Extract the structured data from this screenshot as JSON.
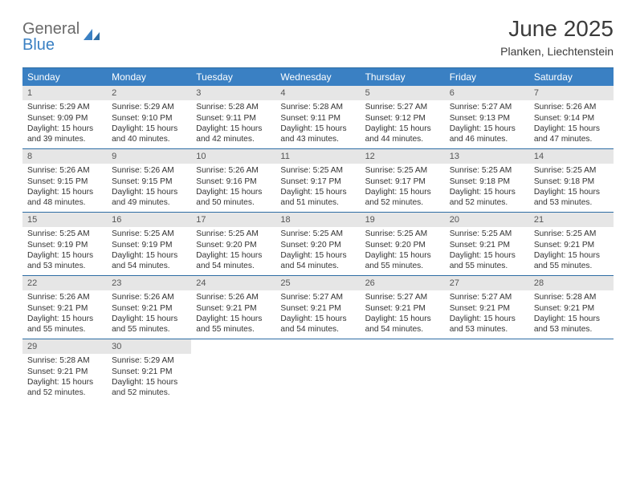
{
  "logo": {
    "word1": "General",
    "word2": "Blue"
  },
  "title": "June 2025",
  "location": "Planken, Liechtenstein",
  "colors": {
    "header_bg": "#3a80c3",
    "header_text": "#ffffff",
    "daynum_bg": "#e6e6e6",
    "border": "#2e6da4",
    "body_text": "#333333",
    "logo_gray": "#6a6a6a",
    "logo_blue": "#3a80c3"
  },
  "weekdays": [
    "Sunday",
    "Monday",
    "Tuesday",
    "Wednesday",
    "Thursday",
    "Friday",
    "Saturday"
  ],
  "weeks": [
    [
      {
        "n": "1",
        "sr": "5:29 AM",
        "ss": "9:09 PM",
        "dl": "15 hours and 39 minutes."
      },
      {
        "n": "2",
        "sr": "5:29 AM",
        "ss": "9:10 PM",
        "dl": "15 hours and 40 minutes."
      },
      {
        "n": "3",
        "sr": "5:28 AM",
        "ss": "9:11 PM",
        "dl": "15 hours and 42 minutes."
      },
      {
        "n": "4",
        "sr": "5:28 AM",
        "ss": "9:11 PM",
        "dl": "15 hours and 43 minutes."
      },
      {
        "n": "5",
        "sr": "5:27 AM",
        "ss": "9:12 PM",
        "dl": "15 hours and 44 minutes."
      },
      {
        "n": "6",
        "sr": "5:27 AM",
        "ss": "9:13 PM",
        "dl": "15 hours and 46 minutes."
      },
      {
        "n": "7",
        "sr": "5:26 AM",
        "ss": "9:14 PM",
        "dl": "15 hours and 47 minutes."
      }
    ],
    [
      {
        "n": "8",
        "sr": "5:26 AM",
        "ss": "9:15 PM",
        "dl": "15 hours and 48 minutes."
      },
      {
        "n": "9",
        "sr": "5:26 AM",
        "ss": "9:15 PM",
        "dl": "15 hours and 49 minutes."
      },
      {
        "n": "10",
        "sr": "5:26 AM",
        "ss": "9:16 PM",
        "dl": "15 hours and 50 minutes."
      },
      {
        "n": "11",
        "sr": "5:25 AM",
        "ss": "9:17 PM",
        "dl": "15 hours and 51 minutes."
      },
      {
        "n": "12",
        "sr": "5:25 AM",
        "ss": "9:17 PM",
        "dl": "15 hours and 52 minutes."
      },
      {
        "n": "13",
        "sr": "5:25 AM",
        "ss": "9:18 PM",
        "dl": "15 hours and 52 minutes."
      },
      {
        "n": "14",
        "sr": "5:25 AM",
        "ss": "9:18 PM",
        "dl": "15 hours and 53 minutes."
      }
    ],
    [
      {
        "n": "15",
        "sr": "5:25 AM",
        "ss": "9:19 PM",
        "dl": "15 hours and 53 minutes."
      },
      {
        "n": "16",
        "sr": "5:25 AM",
        "ss": "9:19 PM",
        "dl": "15 hours and 54 minutes."
      },
      {
        "n": "17",
        "sr": "5:25 AM",
        "ss": "9:20 PM",
        "dl": "15 hours and 54 minutes."
      },
      {
        "n": "18",
        "sr": "5:25 AM",
        "ss": "9:20 PM",
        "dl": "15 hours and 54 minutes."
      },
      {
        "n": "19",
        "sr": "5:25 AM",
        "ss": "9:20 PM",
        "dl": "15 hours and 55 minutes."
      },
      {
        "n": "20",
        "sr": "5:25 AM",
        "ss": "9:21 PM",
        "dl": "15 hours and 55 minutes."
      },
      {
        "n": "21",
        "sr": "5:25 AM",
        "ss": "9:21 PM",
        "dl": "15 hours and 55 minutes."
      }
    ],
    [
      {
        "n": "22",
        "sr": "5:26 AM",
        "ss": "9:21 PM",
        "dl": "15 hours and 55 minutes."
      },
      {
        "n": "23",
        "sr": "5:26 AM",
        "ss": "9:21 PM",
        "dl": "15 hours and 55 minutes."
      },
      {
        "n": "24",
        "sr": "5:26 AM",
        "ss": "9:21 PM",
        "dl": "15 hours and 55 minutes."
      },
      {
        "n": "25",
        "sr": "5:27 AM",
        "ss": "9:21 PM",
        "dl": "15 hours and 54 minutes."
      },
      {
        "n": "26",
        "sr": "5:27 AM",
        "ss": "9:21 PM",
        "dl": "15 hours and 54 minutes."
      },
      {
        "n": "27",
        "sr": "5:27 AM",
        "ss": "9:21 PM",
        "dl": "15 hours and 53 minutes."
      },
      {
        "n": "28",
        "sr": "5:28 AM",
        "ss": "9:21 PM",
        "dl": "15 hours and 53 minutes."
      }
    ],
    [
      {
        "n": "29",
        "sr": "5:28 AM",
        "ss": "9:21 PM",
        "dl": "15 hours and 52 minutes."
      },
      {
        "n": "30",
        "sr": "5:29 AM",
        "ss": "9:21 PM",
        "dl": "15 hours and 52 minutes."
      },
      null,
      null,
      null,
      null,
      null
    ]
  ],
  "labels": {
    "sunrise": "Sunrise:",
    "sunset": "Sunset:",
    "daylight": "Daylight:"
  }
}
